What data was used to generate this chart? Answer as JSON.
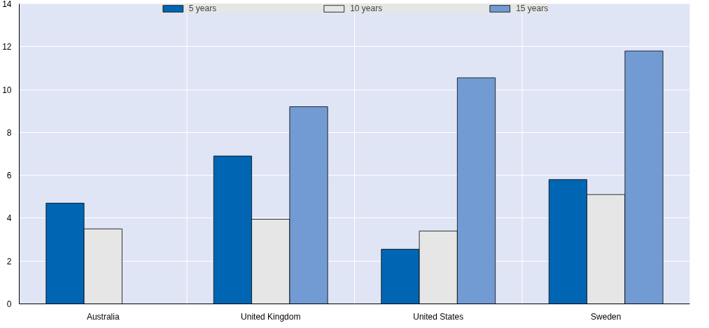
{
  "chart_data": {
    "type": "bar",
    "categories": [
      "Australia",
      "United Kingdom",
      "United States",
      "Sweden"
    ],
    "series": [
      {
        "name": "5 years",
        "color": "#0066b3",
        "values": [
          4.7,
          6.9,
          2.55,
          5.8
        ]
      },
      {
        "name": "10 years",
        "color": "#e6e6e6",
        "values": [
          3.5,
          3.95,
          3.4,
          5.1
        ]
      },
      {
        "name": "15 years",
        "color": "#729bd3",
        "values": [
          null,
          9.2,
          10.55,
          11.8
        ]
      }
    ],
    "ylim": [
      0,
      14
    ],
    "yticks": [
      0,
      2,
      4,
      6,
      8,
      10,
      12,
      14
    ],
    "grid": true,
    "legend": "top"
  }
}
